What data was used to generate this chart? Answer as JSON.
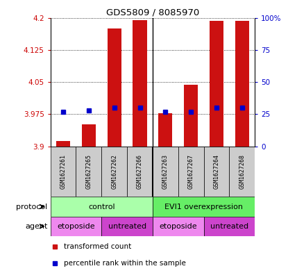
{
  "title": "GDS5809 / 8085970",
  "samples": [
    "GSM1627261",
    "GSM1627265",
    "GSM1627262",
    "GSM1627266",
    "GSM1627263",
    "GSM1627267",
    "GSM1627264",
    "GSM1627268"
  ],
  "transformed_counts": [
    3.912,
    3.952,
    4.175,
    4.195,
    3.978,
    4.044,
    4.193,
    4.192
  ],
  "percentile_ranks": [
    27,
    28,
    30,
    30,
    27,
    27,
    30,
    30
  ],
  "ylim_left": [
    3.9,
    4.2
  ],
  "ylim_right": [
    0,
    100
  ],
  "yticks_left": [
    3.9,
    3.975,
    4.05,
    4.125,
    4.2
  ],
  "ytick_labels_left": [
    "3.9",
    "3.975",
    "4.05",
    "4.125",
    "4.2"
  ],
  "yticks_right": [
    0,
    25,
    50,
    75,
    100
  ],
  "ytick_labels_right": [
    "0",
    "25",
    "50",
    "75",
    "100%"
  ],
  "protocol_groups": [
    {
      "label": "control",
      "start": 0,
      "end": 4,
      "color": "#aaffaa"
    },
    {
      "label": "EVI1 overexpression",
      "start": 4,
      "end": 8,
      "color": "#66ee66"
    }
  ],
  "agent_groups": [
    {
      "label": "etoposide",
      "start": 0,
      "end": 2,
      "color": "#ee88ee"
    },
    {
      "label": "untreated",
      "start": 2,
      "end": 4,
      "color": "#cc44cc"
    },
    {
      "label": "etoposide",
      "start": 4,
      "end": 6,
      "color": "#ee88ee"
    },
    {
      "label": "untreated",
      "start": 6,
      "end": 8,
      "color": "#cc44cc"
    }
  ],
  "bar_color": "#cc1111",
  "dot_color": "#0000cc",
  "grid_color": "#000000",
  "bar_bottom": 3.9,
  "bar_width": 0.55,
  "label_color_left": "#cc0000",
  "label_color_right": "#0000cc",
  "sample_area_color": "#cccccc",
  "legend_red": "transformed count",
  "legend_blue": "percentile rank within the sample"
}
